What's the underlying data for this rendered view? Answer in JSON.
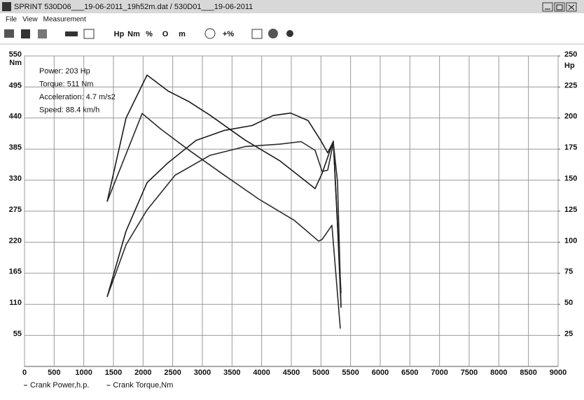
{
  "window": {
    "title": "SPRINT 530D06___19-06-2011_19h52m.dat / 530D01___19-06-2011"
  },
  "menu": [
    "File",
    "View",
    "Measurement"
  ],
  "toolbar": [
    "Hp",
    "Nm",
    "%",
    "O",
    "m",
    "+%"
  ],
  "chart_data": {
    "type": "line",
    "annotations": [
      "Power: 203 Hp",
      "Torque: 511 Nm",
      "Acceleration: 4.7 m/s2",
      "Speed: 88.4 km/h"
    ],
    "y_unit": "Nm",
    "y2_unit": "Hp",
    "xlim": [
      0,
      9000
    ],
    "xticks": [
      0,
      500,
      1000,
      1500,
      2000,
      2500,
      3000,
      3500,
      4000,
      4500,
      5000,
      5500,
      6000,
      6500,
      7000,
      7500,
      8000,
      8500,
      9000
    ],
    "ylim": [
      0,
      550
    ],
    "yticks": [
      55,
      110,
      165,
      220,
      275,
      330,
      385,
      440,
      495,
      550
    ],
    "y2lim": [
      0,
      250
    ],
    "y2ticks": [
      25,
      50,
      75,
      100,
      125,
      150,
      175,
      200,
      225,
      250
    ],
    "grid": true,
    "series": [
      {
        "name": "Crank Power,h.p.",
        "color": "#1a1a1a",
        "axis": "y2",
        "x": [
          1394,
          1713,
          2067,
          2421,
          2894,
          3366,
          3839,
          4193,
          4488,
          4783,
          4996,
          5114,
          5209,
          5268,
          5339
        ],
        "values": [
          56,
          109,
          148,
          164,
          182,
          190,
          194,
          202,
          204,
          198,
          182,
          172,
          181,
          126,
          59
        ]
      },
      {
        "name": "Crank Torque,Nm",
        "color": "#1a1a1a",
        "x": [
          1394,
          1713,
          2067,
          2421,
          2776,
          3130,
          3720,
          4311,
          4902,
          5020,
          5209,
          5280,
          5339
        ],
        "values": [
          292,
          440,
          516,
          488,
          469,
          445,
          401,
          364,
          315,
          342,
          399,
          250,
          104
        ]
      },
      {
        "color": "#2a2a2a",
        "axis": "y2",
        "x": [
          1394,
          1713,
          2067,
          2540,
          3130,
          3720,
          4311,
          4665,
          4902,
          5020,
          5114,
          5209,
          5280,
          5339
        ],
        "values": [
          56,
          98,
          126,
          154,
          170,
          177,
          179,
          181,
          174,
          157,
          158,
          180,
          149,
          49
        ]
      },
      {
        "color": "#2a2a2a",
        "x": [
          1394,
          1984,
          2303,
          2776,
          3366,
          3957,
          4547,
          4961,
          5020,
          5185,
          5327
        ],
        "values": [
          292,
          448,
          420,
          383,
          339,
          296,
          259,
          222,
          225,
          250,
          67
        ]
      }
    ]
  }
}
